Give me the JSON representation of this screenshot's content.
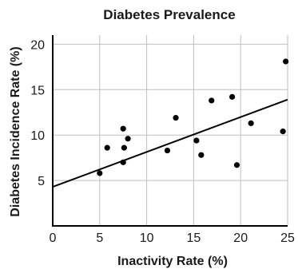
{
  "chart_data": {
    "type": "scatter",
    "title": "Diabetes Prevalence",
    "xlabel": "Inactivity Rate (%)",
    "ylabel": "Diabetes Incidence Rate (%)",
    "xlim": [
      0,
      25
    ],
    "ylim": [
      0,
      21
    ],
    "x_ticks": [
      0,
      5,
      10,
      15,
      20,
      25
    ],
    "y_ticks": [
      5,
      10,
      15,
      20
    ],
    "grid": true,
    "series": [
      {
        "points": [
          {
            "x": 5.0,
            "y": 5.8
          },
          {
            "x": 5.8,
            "y": 8.6
          },
          {
            "x": 7.5,
            "y": 10.7
          },
          {
            "x": 7.6,
            "y": 8.6
          },
          {
            "x": 8.0,
            "y": 9.6
          },
          {
            "x": 7.5,
            "y": 7.0
          },
          {
            "x": 12.2,
            "y": 8.3
          },
          {
            "x": 13.1,
            "y": 11.9
          },
          {
            "x": 15.3,
            "y": 9.4
          },
          {
            "x": 15.8,
            "y": 7.8
          },
          {
            "x": 16.9,
            "y": 13.8
          },
          {
            "x": 19.1,
            "y": 14.2
          },
          {
            "x": 19.6,
            "y": 6.7
          },
          {
            "x": 21.1,
            "y": 11.3
          },
          {
            "x": 24.5,
            "y": 10.4
          },
          {
            "x": 24.8,
            "y": 18.1
          }
        ]
      }
    ],
    "trendline": {
      "x": [
        0,
        25
      ],
      "y": [
        4.3,
        13.9
      ]
    },
    "colors": {
      "points": "#000000",
      "line": "#000000",
      "grid": "#bfbfbf",
      "axis": "#000000",
      "text": "#1a1a1a"
    }
  }
}
